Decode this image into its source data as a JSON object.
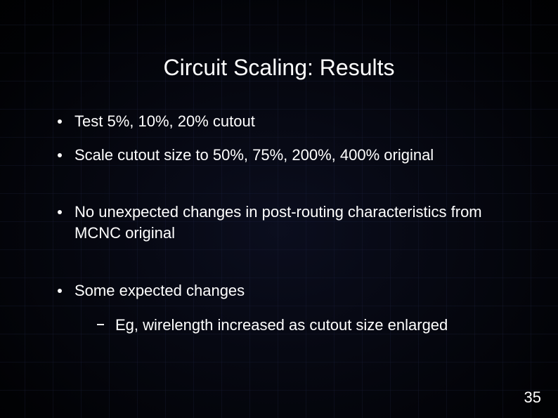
{
  "title": "Circuit Scaling: Results",
  "bullets": {
    "b0": "Test 5%, 10%, 20% cutout",
    "b1": "Scale cutout size to 50%, 75%, 200%, 400% original",
    "b2": "No unexpected changes in post-routing characteristics from MCNC original",
    "b3": "Some expected changes",
    "b3_sub0": "Eg, wirelength increased as cutout size enlarged"
  },
  "page_number": "35",
  "colors": {
    "background": "#000000",
    "text": "#ffffff",
    "grid": "#1e233c"
  },
  "typography": {
    "title_fontsize_pt": 24,
    "body_fontsize_pt": 17,
    "font_family": "Arial"
  }
}
